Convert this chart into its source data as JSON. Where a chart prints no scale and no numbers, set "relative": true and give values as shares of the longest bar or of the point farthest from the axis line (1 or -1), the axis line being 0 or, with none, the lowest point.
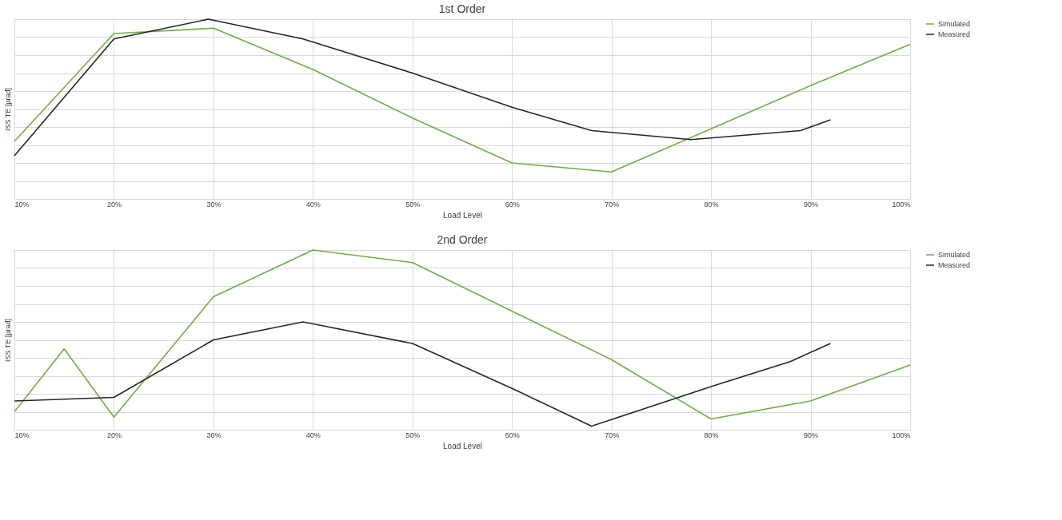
{
  "chart_data": [
    {
      "type": "line",
      "title": "1st Order",
      "xlabel": "Load Level",
      "ylabel": "ISS TE [µrad]",
      "relative": true,
      "grid": true,
      "legend": "right",
      "xlim": [
        10,
        100
      ],
      "xticks": [
        {
          "value": 10,
          "label": "10%"
        },
        {
          "value": 20,
          "label": "20%"
        },
        {
          "value": 30,
          "label": "30%"
        },
        {
          "value": 40,
          "label": "40%"
        },
        {
          "value": 50,
          "label": "50%"
        },
        {
          "value": 60,
          "label": "60%"
        },
        {
          "value": 70,
          "label": "70%"
        },
        {
          "value": 80,
          "label": "80%"
        },
        {
          "value": 90,
          "label": "90%"
        },
        {
          "value": 100,
          "label": "100%"
        }
      ],
      "series": [
        {
          "name": "Simulated",
          "color": "#70ad47",
          "x": [
            10,
            20,
            30,
            40,
            50,
            60,
            70,
            80,
            90,
            100
          ],
          "values": [
            0.32,
            0.92,
            0.95,
            0.72,
            0.45,
            0.2,
            0.15,
            0.39,
            0.63,
            0.86
          ]
        },
        {
          "name": "Measured",
          "color": "#262626",
          "x": [
            10,
            20,
            29.5,
            39,
            50,
            60,
            68,
            78,
            89,
            92
          ],
          "values": [
            0.24,
            0.89,
            1,
            0.89,
            0.7,
            0.51,
            0.38,
            0.33,
            0.38,
            0.44
          ]
        }
      ]
    },
    {
      "type": "line",
      "title": "2nd Order",
      "xlabel": "Load Level",
      "ylabel": "ISS TE [µrad]",
      "relative": true,
      "grid": true,
      "legend": "right",
      "xlim": [
        10,
        100
      ],
      "xticks": [
        {
          "value": 10,
          "label": "10%"
        },
        {
          "value": 20,
          "label": "20%"
        },
        {
          "value": 30,
          "label": "30%"
        },
        {
          "value": 40,
          "label": "40%"
        },
        {
          "value": 50,
          "label": "50%"
        },
        {
          "value": 60,
          "label": "60%"
        },
        {
          "value": 70,
          "label": "70%"
        },
        {
          "value": 80,
          "label": "80%"
        },
        {
          "value": 90,
          "label": "90%"
        },
        {
          "value": 100,
          "label": "100%"
        }
      ],
      "series": [
        {
          "name": "Simulated",
          "color": "#70ad47",
          "x": [
            10,
            15,
            20,
            30,
            40,
            50,
            60,
            70,
            80,
            90,
            100
          ],
          "values": [
            0.1,
            0.45,
            0.07,
            0.74,
            1,
            0.93,
            0.66,
            0.39,
            0.06,
            0.16,
            0.36
          ]
        },
        {
          "name": "Measured",
          "color": "#262626",
          "x": [
            10,
            20,
            30,
            39,
            50,
            60,
            68,
            80,
            88,
            92
          ],
          "values": [
            0.16,
            0.18,
            0.5,
            0.6,
            0.48,
            0.23,
            0.02,
            0.24,
            0.38,
            0.48
          ]
        }
      ]
    }
  ]
}
